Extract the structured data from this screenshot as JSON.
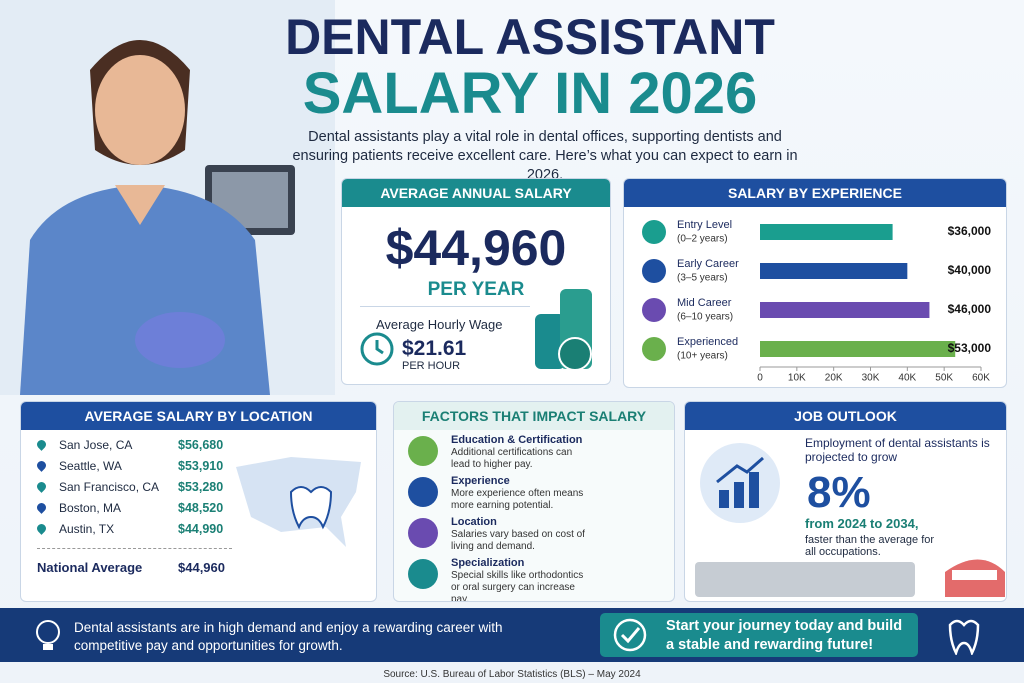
{
  "header": {
    "title_line1": "DENTAL ASSISTANT",
    "title_line2": "SALARY IN 2026",
    "intro": "Dental assistants play a vital role in dental offices, supporting dentists and ensuring patients receive excellent care. Here’s what you can expect to earn in 2026."
  },
  "average_salary": {
    "heading": "AVERAGE ANNUAL SALARY",
    "amount": "$44,960",
    "period": "PER YEAR",
    "hourly_label": "Average Hourly Wage",
    "hourly_amount": "$21.61",
    "hourly_period": "PER HOUR"
  },
  "experience": {
    "heading": "SALARY BY EXPERIENCE",
    "type": "bar",
    "categories": [
      "Entry Level",
      "Early Career",
      "Mid Career",
      "Experienced"
    ],
    "sublabels": [
      "(0–2 years)",
      "(3–5 years)",
      "(6–10 years)",
      "(10+ years)"
    ],
    "values": [
      36000,
      40000,
      46000,
      53000
    ],
    "value_labels": [
      "$36,000",
      "$40,000",
      "$46,000",
      "$53,000"
    ],
    "colors": [
      "#1a9e8f",
      "#1e4fa0",
      "#6a4bb0",
      "#6ab04c"
    ],
    "xlim": [
      0,
      60000
    ],
    "xticks": [
      0,
      {
        "value": 10000,
        "label": "10K"
      },
      {
        "value": 20000,
        "label": "20K"
      },
      {
        "value": 30000,
        "label": "30K"
      },
      {
        "value": 40000,
        "label": "40K"
      },
      {
        "value": 50000,
        "label": "50K"
      },
      {
        "value": 60000,
        "label": "60K"
      }
    ]
  },
  "location": {
    "heading": "AVERAGE SALARY BY LOCATION",
    "rows": [
      {
        "city": "San Jose, CA",
        "salary": "$56,680"
      },
      {
        "city": "Seattle, WA",
        "salary": "$53,910"
      },
      {
        "city": "San Francisco, CA",
        "salary": "$53,280"
      },
      {
        "city": "Boston, MA",
        "salary": "$48,520"
      },
      {
        "city": "Austin, TX",
        "salary": "$44,990"
      }
    ],
    "national_label": "National Average",
    "national_salary": "$44,960"
  },
  "factors": {
    "heading": "FACTORS THAT IMPACT SALARY",
    "items": [
      {
        "title": "Education & Certification",
        "text": "Additional certifications can lead to higher pay."
      },
      {
        "title": "Experience",
        "text": "More experience often means more earning potential."
      },
      {
        "title": "Location",
        "text": "Salaries vary based on cost of living and demand."
      },
      {
        "title": "Specialization",
        "text": "Special skills like orthodontics or oral surgery can increase pay."
      }
    ]
  },
  "outlook": {
    "heading": "JOB OUTLOOK",
    "text": "Employment of dental assistants is projected to grow",
    "percent": "8%",
    "period": "from 2024 to 2034,",
    "note": "faster than the average for all occupations."
  },
  "footer": {
    "left": "Dental assistants are in high demand and enjoy a rewarding career with competitive pay and opportunities for growth.",
    "right": "Start your journey today and build a stable and rewarding future!",
    "source": "Source: U.S. Bureau of Labor Statistics (BLS) – May 2024"
  }
}
